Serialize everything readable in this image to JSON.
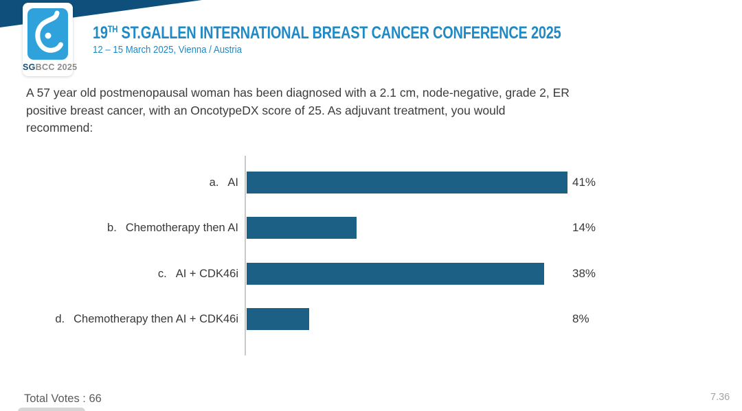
{
  "header": {
    "title_num": "19",
    "title_sup": "TH",
    "title_rest": " ST.GALLEN INTERNATIONAL BREAST CANCER CONFERENCE 2025",
    "subtitle": "12 – 15 March 2025, Vienna / Austria",
    "logo": {
      "sg": "SG",
      "rest": "BCC 2025"
    },
    "accent_blue": "#1f8ac5",
    "banner_navy": "#0f4f7b"
  },
  "question": {
    "lines": [
      "A 57 year old postmenopausal woman has been diagnosed with a 2.1 cm, node-negative, grade 2, ER",
      "positive breast cancer, with an OncotypeDX score of 25.  As adjuvant treatment, you would",
      "recommend:"
    ]
  },
  "chart_data": {
    "type": "bar",
    "orientation": "horizontal",
    "prefixes": [
      "a.",
      "b.",
      "c.",
      "d."
    ],
    "categories": [
      "AI",
      "Chemotherapy then AI",
      "AI + CDK46i",
      "Chemotherapy then AI + CDK46i"
    ],
    "values": [
      41,
      14,
      38,
      8
    ],
    "value_labels": [
      "41%",
      "14%",
      "38%",
      "8%"
    ],
    "unit": "%",
    "xlim": [
      0,
      41
    ],
    "bar_color": "#1d6086",
    "axis_color": "#c9c9c9",
    "grid": "off",
    "legend": "none"
  },
  "footer": {
    "total_votes": "Total Votes : 66",
    "page_number": "7.36"
  }
}
